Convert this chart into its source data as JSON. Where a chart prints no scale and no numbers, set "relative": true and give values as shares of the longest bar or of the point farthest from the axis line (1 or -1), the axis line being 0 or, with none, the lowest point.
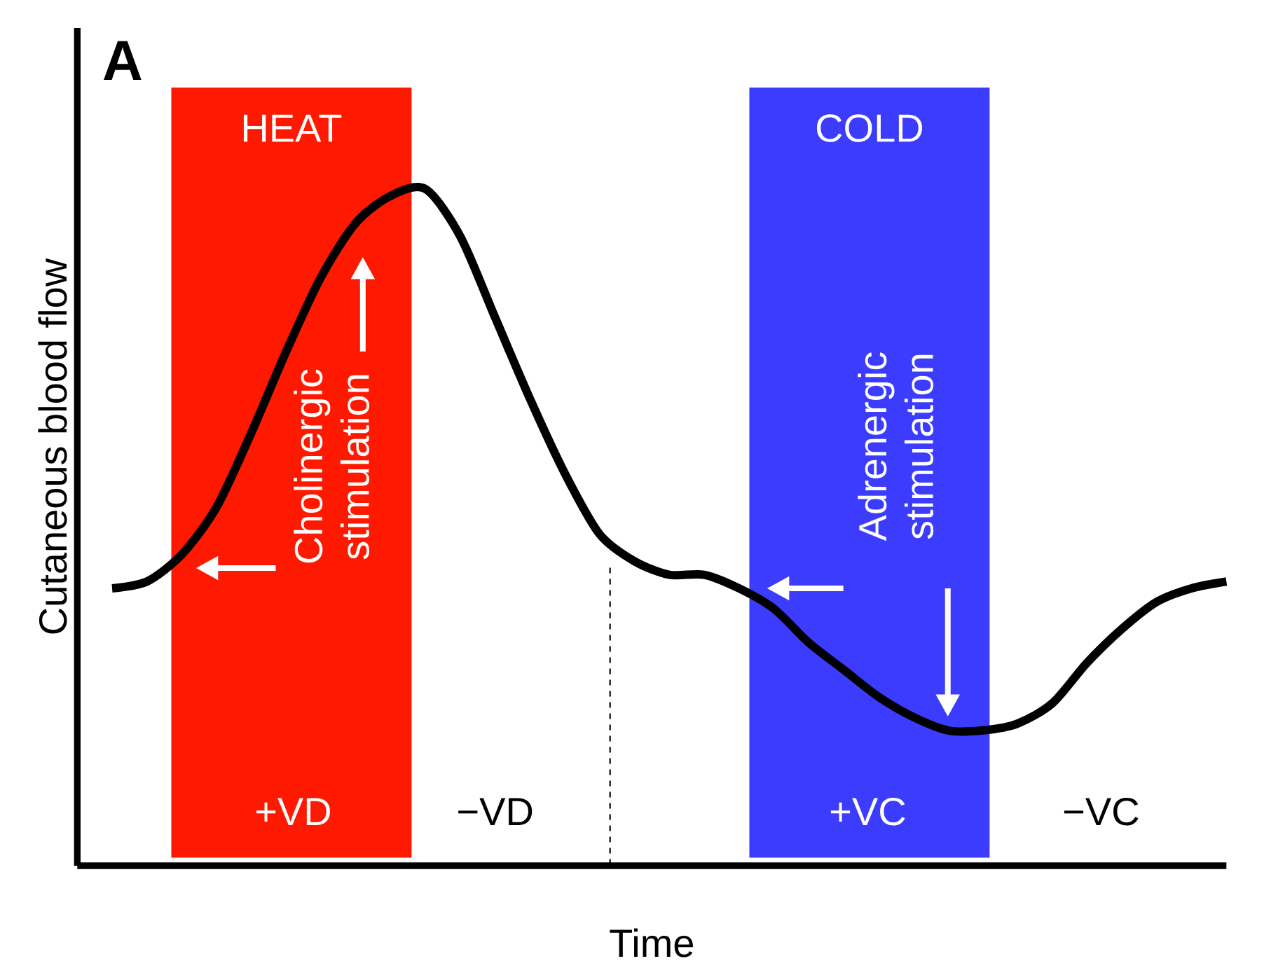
{
  "chart_data": {
    "type": "line",
    "relative": true,
    "tick_labels": false,
    "xlabel": "Time",
    "ylabel": "Cutaneous blood flow",
    "categories": [
      null,
      null,
      null,
      null,
      null,
      null,
      null,
      null,
      null,
      null,
      null,
      null,
      null,
      null,
      null,
      null,
      null,
      null,
      null,
      null,
      null,
      null,
      null,
      null,
      null,
      null,
      null,
      null,
      null,
      null,
      null,
      null,
      null
    ],
    "series": [
      {
        "color": "#000000",
        "values": [
          0.41,
          0.42,
          0.46,
          0.53,
          0.64,
          0.76,
          0.87,
          0.95,
          0.99,
          1.0,
          0.93,
          0.81,
          0.69,
          0.58,
          0.49,
          0.45,
          0.43,
          0.43,
          0.41,
          0.38,
          0.33,
          0.29,
          0.25,
          0.22,
          0.2,
          0.2,
          0.21,
          0.24,
          0.3,
          0.35,
          0.39,
          0.41,
          0.42
        ]
      }
    ],
    "annotations": [
      "A",
      "HEAT",
      "COLD",
      "+VD",
      "−VD",
      "+VC",
      "−VC",
      "Cholinergic stimulation",
      "Adrenergic stimulation"
    ]
  }
}
